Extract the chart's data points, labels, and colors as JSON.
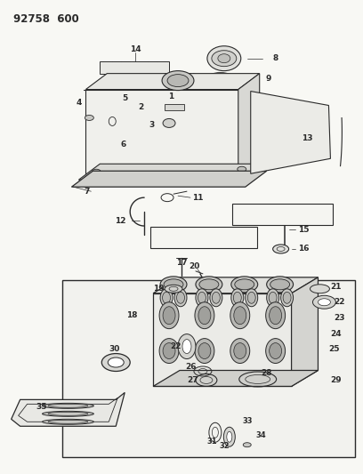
{
  "title": "92758 600",
  "bg": "#f5f5f0",
  "fg": "#2a2a2a",
  "fig_w": 4.08,
  "fig_h": 5.33,
  "dpi": 100
}
